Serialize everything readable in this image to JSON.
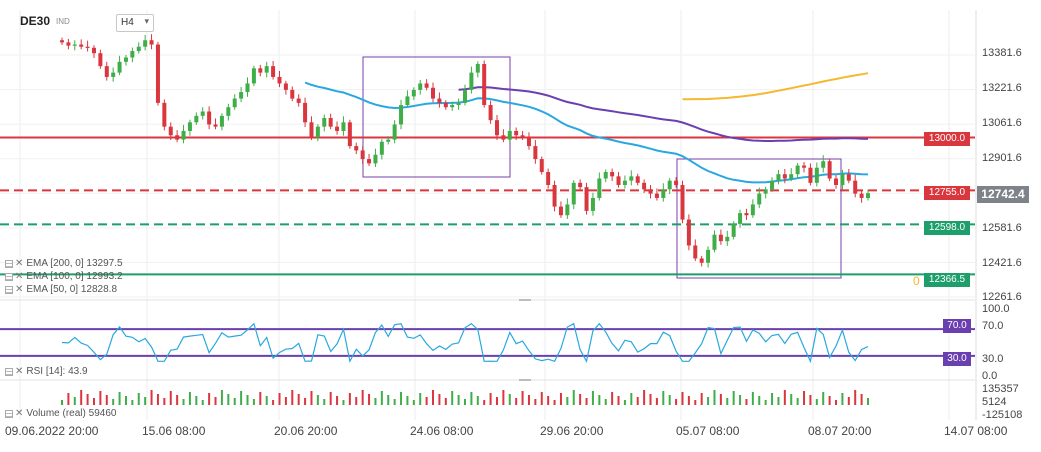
{
  "header": {
    "symbol": "DE30",
    "market": "IND",
    "timeframe": "H4"
  },
  "indicators": {
    "ema200_label": "EMA [200, 0] 13297.5",
    "ema100_label": "EMA [100, 0] 12993.2",
    "ema50_label": "EMA [50, 0] 12828.8",
    "rsi_label": "RSI [14]: 43.9",
    "volume_label": "Volume (real) 59460"
  },
  "price_axis": {
    "ticks": [
      "13381.6",
      "13221.6",
      "13061.6",
      "12901.6",
      "12581.6",
      "12421.6",
      "12261.6"
    ]
  },
  "levels": {
    "l13000": "13000.0",
    "l12755": "12755.0",
    "l12598": "12598.0",
    "l12366": "12366.5",
    "fib_zero": "0",
    "current_price": "12742.4"
  },
  "rsi_axis": {
    "ticks": [
      "100.0",
      "70.0",
      "30.0",
      "0.0"
    ],
    "upper_tag": "70.0",
    "lower_tag": "30.0"
  },
  "volume_axis": {
    "ticks": [
      "135357",
      "5124",
      "-125108"
    ]
  },
  "time_axis": {
    "labels": [
      "09.06.2022 20:00",
      "15.06 08:00",
      "20.06 20:00",
      "24.06 08:00",
      "29.06 20:00",
      "05.07 08:00",
      "08.07 20:00",
      "14.07 08:00"
    ]
  },
  "colors": {
    "bull": "#3fae49",
    "bear": "#d9363e",
    "ema50": "#29a8e0",
    "ema100": "#6a3fb0",
    "ema200": "#f5b830",
    "level_red": "#d9363e",
    "level_green": "#1e9e6a",
    "rsi_line": "#6a3fb0",
    "box": "#7a3fa8",
    "price_tag": "#7e8389"
  },
  "chart_data": {
    "type": "candlestick",
    "price_range": [
      12200,
      13460
    ],
    "horizontal_levels": [
      13000.0,
      12755.0,
      12598.0,
      12366.5
    ],
    "ema50_last": 12828.8,
    "ema100_last": 12993.2,
    "ema200_last": 13297.5,
    "rsi_last": 43.9,
    "rsi_levels": [
      70,
      30
    ],
    "volume_last": 59460,
    "candle_closes": [
      13440,
      13425,
      13430,
      13420,
      13415,
      13390,
      13330,
      13280,
      13300,
      13350,
      13370,
      13400,
      13420,
      13450,
      13430,
      13160,
      13050,
      13010,
      12990,
      13030,
      13070,
      13100,
      13120,
      13060,
      13050,
      13100,
      13140,
      13180,
      13210,
      13250,
      13320,
      13300,
      13330,
      13280,
      13250,
      13220,
      13180,
      13160,
      13070,
      13000,
      13050,
      13090,
      13050,
      13030,
      13070,
      12960,
      12940,
      12900,
      12880,
      12920,
      12980,
      12990,
      13060,
      13150,
      13190,
      13220,
      13250,
      13230,
      13180,
      13160,
      13140,
      13150,
      13160,
      13220,
      13300,
      13340,
      13150,
      13080,
      13010,
      12990,
      13030,
      13010,
      13000,
      12960,
      12900,
      12840,
      12780,
      12680,
      12640,
      12690,
      12790,
      12770,
      12660,
      12720,
      12810,
      12840,
      12820,
      12780,
      12800,
      12820,
      12790,
      12760,
      12740,
      12720,
      12760,
      12800,
      12780,
      12620,
      12500,
      12440,
      12420,
      12480,
      12550,
      12520,
      12540,
      12600,
      12650,
      12640,
      12690,
      12740,
      12760,
      12800,
      12830,
      12810,
      12830,
      12870,
      12860,
      12790,
      12860,
      12890,
      12810,
      12780,
      12830,
      12800,
      12740,
      12720,
      12742
    ]
  }
}
